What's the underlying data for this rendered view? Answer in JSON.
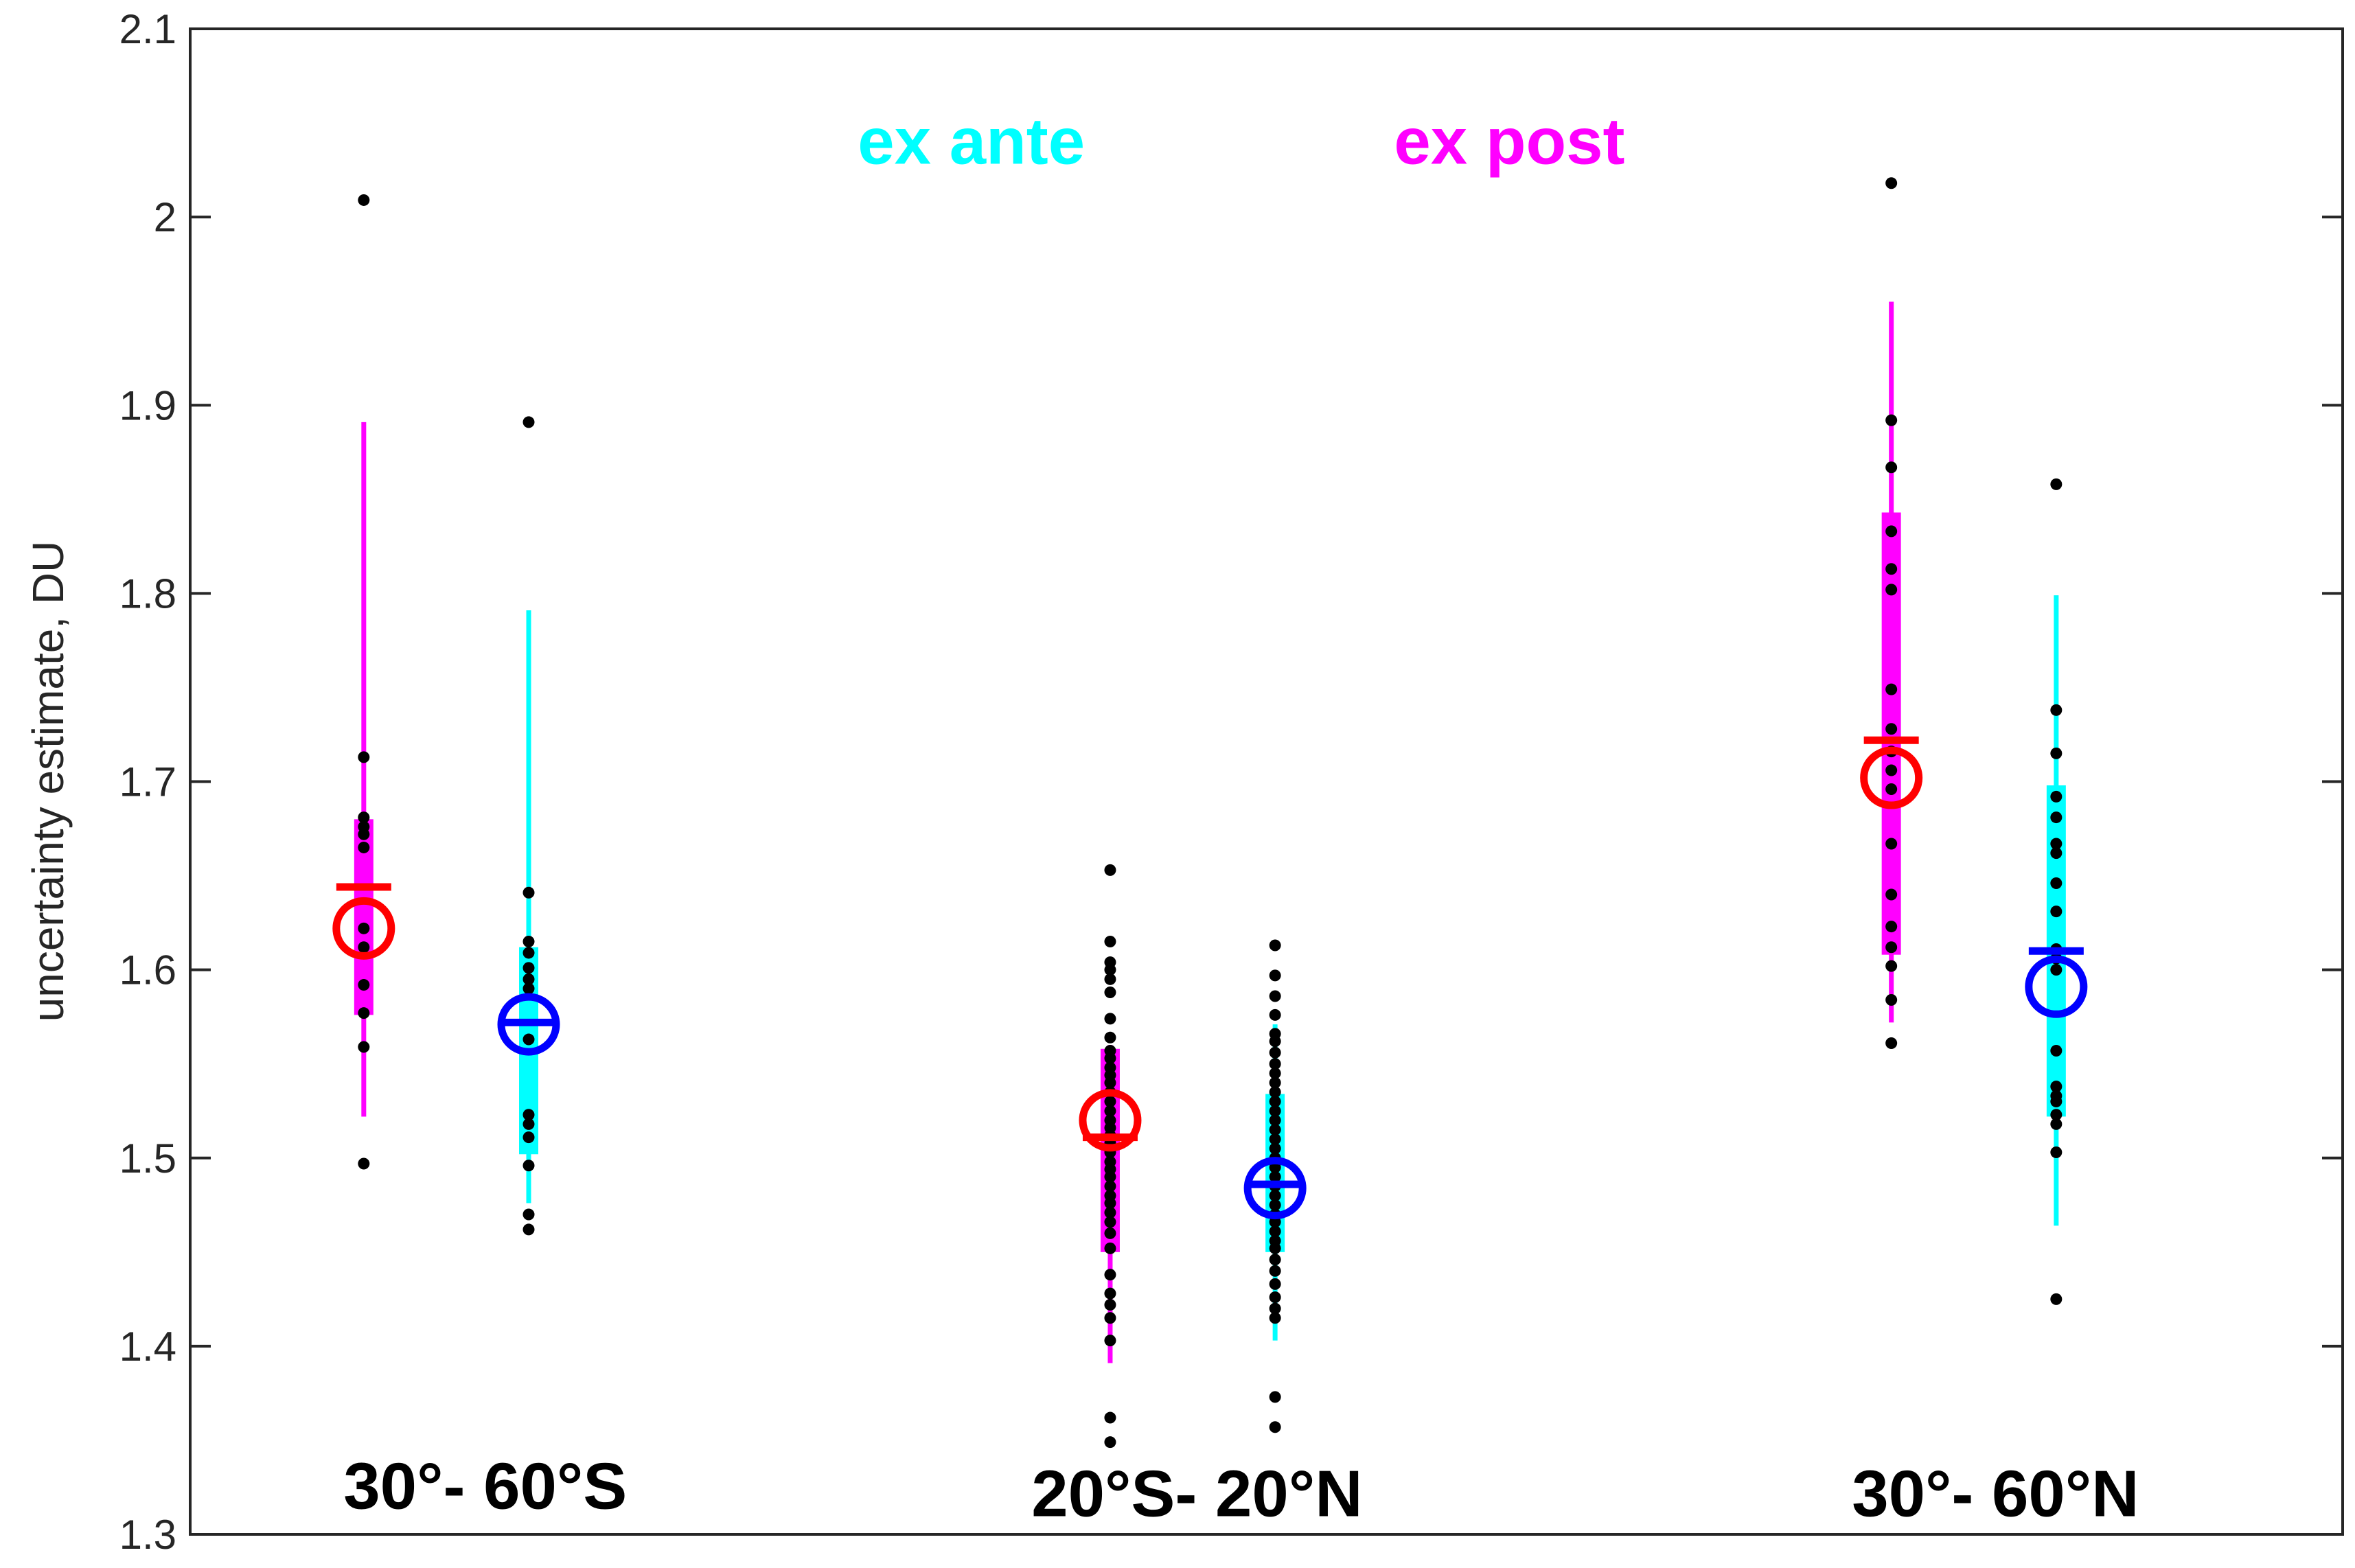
{
  "chart_data": {
    "type": "scatter",
    "ylabel": "uncertainty estimate, DU",
    "xlabel": "",
    "ylim": [
      1.3,
      2.1
    ],
    "yticks": [
      1.3,
      1.4,
      1.5,
      1.6,
      1.7,
      1.8,
      1.9,
      2.0,
      2.1
    ],
    "ytick_labels": [
      "1.3",
      "1.4",
      "1.5",
      "1.6",
      "1.7",
      "1.8",
      "1.9",
      "2",
      "2.1"
    ],
    "xlim": [
      0,
      12.4
    ],
    "grid": false,
    "annotations": [
      {
        "text": "ex ante",
        "color": "#00ffff",
        "x": 4.5,
        "y": 2.04
      },
      {
        "text": "ex post",
        "color": "#ff00ff",
        "x": 7.6,
        "y": 2.04
      }
    ],
    "regions": [
      {
        "label": "30°- 60°S",
        "x": 1.7,
        "y": 1.326
      },
      {
        "label": "20°S- 20°N",
        "x": 5.8,
        "y": 1.322
      },
      {
        "label": "30°- 60°N",
        "x": 10.4,
        "y": 1.322
      }
    ],
    "colors": {
      "ex_post_box": "#ff00ff",
      "ex_ante_box": "#00ffff",
      "ex_post_mark": "#ff0000",
      "ex_ante_mark": "#0000ff",
      "points": "#000000"
    },
    "series": [
      {
        "group": "ex_post",
        "region": "30°- 60°S",
        "x": 1.0,
        "whisker": [
          1.522,
          1.891
        ],
        "box": [
          1.576,
          1.68
        ],
        "median": 1.644,
        "mean": 1.622,
        "points": [
          2.009,
          1.713,
          1.681,
          1.676,
          1.672,
          1.665,
          1.622,
          1.612,
          1.592,
          1.577,
          1.559,
          1.497
        ]
      },
      {
        "group": "ex_ante",
        "region": "30°- 60°S",
        "x": 1.95,
        "whisker": [
          1.476,
          1.791
        ],
        "box": [
          1.502,
          1.612
        ],
        "median": 1.572,
        "mean": 1.571,
        "points": [
          1.891,
          1.641,
          1.615,
          1.609,
          1.601,
          1.595,
          1.59,
          1.563,
          1.523,
          1.518,
          1.511,
          1.496,
          1.47,
          1.462
        ]
      },
      {
        "group": "ex_post",
        "region": "20°S- 20°N",
        "x": 5.3,
        "whisker": [
          1.391,
          1.56
        ],
        "box": [
          1.45,
          1.558
        ],
        "median": 1.511,
        "mean": 1.52,
        "points": [
          1.653,
          1.615,
          1.604,
          1.6,
          1.595,
          1.588,
          1.574,
          1.564,
          1.557,
          1.553,
          1.548,
          1.544,
          1.54,
          1.535,
          1.53,
          1.525,
          1.52,
          1.516,
          1.512,
          1.508,
          1.503,
          1.498,
          1.494,
          1.49,
          1.485,
          1.48,
          1.476,
          1.471,
          1.466,
          1.46,
          1.452,
          1.438,
          1.428,
          1.422,
          1.415,
          1.403,
          1.362,
          1.349
        ]
      },
      {
        "group": "ex_ante",
        "region": "20°S- 20°N",
        "x": 6.25,
        "whisker": [
          1.403,
          1.571
        ],
        "box": [
          1.45,
          1.534
        ],
        "median": 1.486,
        "mean": 1.484,
        "points": [
          1.613,
          1.597,
          1.586,
          1.576,
          1.566,
          1.562,
          1.556,
          1.55,
          1.545,
          1.54,
          1.535,
          1.53,
          1.525,
          1.52,
          1.515,
          1.51,
          1.505,
          1.5,
          1.495,
          1.49,
          1.485,
          1.48,
          1.475,
          1.47,
          1.466,
          1.461,
          1.456,
          1.452,
          1.446,
          1.44,
          1.433,
          1.426,
          1.42,
          1.415,
          1.373,
          1.357
        ]
      },
      {
        "group": "ex_post",
        "region": "30°- 60°N",
        "x": 9.8,
        "whisker": [
          1.572,
          1.955
        ],
        "box": [
          1.608,
          1.843
        ],
        "median": 1.722,
        "mean": 1.702,
        "points": [
          2.018,
          1.892,
          1.867,
          1.833,
          1.813,
          1.802,
          1.749,
          1.728,
          1.716,
          1.706,
          1.696,
          1.667,
          1.64,
          1.623,
          1.612,
          1.602,
          1.584,
          1.561
        ]
      },
      {
        "group": "ex_ante",
        "region": "30°- 60°N",
        "x": 10.75,
        "whisker": [
          1.464,
          1.799
        ],
        "box": [
          1.522,
          1.698
        ],
        "median": 1.61,
        "mean": 1.591,
        "points": [
          1.858,
          1.738,
          1.715,
          1.692,
          1.681,
          1.667,
          1.662,
          1.646,
          1.631,
          1.611,
          1.606,
          1.6,
          1.557,
          1.538,
          1.533,
          1.53,
          1.523,
          1.518,
          1.503,
          1.425
        ]
      }
    ]
  }
}
